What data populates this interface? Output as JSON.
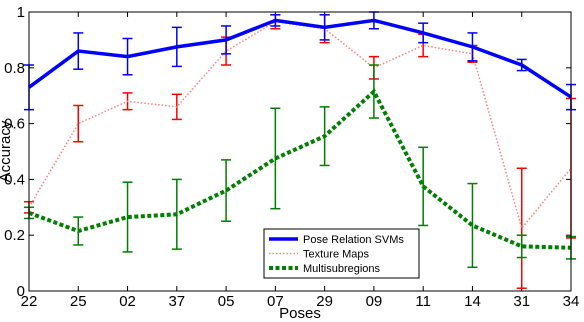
{
  "chart_data": {
    "type": "line",
    "xlabel": "Poses",
    "ylabel": "Accuracy",
    "categories": [
      "22",
      "25",
      "02",
      "37",
      "05",
      "07",
      "29",
      "09",
      "11",
      "14",
      "31",
      "34"
    ],
    "ylim": [
      0,
      1
    ],
    "yticks": [
      "0",
      "0.2",
      "0.4",
      "0.6",
      "0.8",
      "1"
    ],
    "grid": false,
    "legend_position": "bottom-center",
    "series": [
      {
        "name": "Pose Relation SVMs",
        "color": "#0000ff",
        "style": "solid",
        "values": [
          0.73,
          0.86,
          0.84,
          0.875,
          0.9,
          0.97,
          0.945,
          0.97,
          0.925,
          0.875,
          0.81,
          0.695
        ],
        "err": [
          0.08,
          0.065,
          0.065,
          0.07,
          0.05,
          0.02,
          0.045,
          0.03,
          0.035,
          0.05,
          0.02,
          0.045
        ]
      },
      {
        "name": "Texture Maps",
        "color": "#ff0000",
        "bar_color": "#ff0000",
        "line_color": "#ff8080",
        "style": "dotted",
        "values": [
          0.3,
          0.6,
          0.68,
          0.66,
          0.86,
          0.965,
          0.94,
          0.8,
          0.88,
          0.85,
          0.225,
          0.44
        ],
        "err": [
          0.02,
          0.065,
          0.03,
          0.045,
          0.05,
          0.025,
          0.05,
          0.04,
          0.04,
          0.03,
          0.215,
          0.25
        ]
      },
      {
        "name": "Multisubregions",
        "color": "#008000",
        "style": "dashed",
        "values": [
          0.28,
          0.215,
          0.265,
          0.275,
          0.36,
          0.475,
          0.555,
          0.715,
          0.375,
          0.235,
          0.16,
          0.155
        ],
        "err": [
          0.02,
          0.05,
          0.125,
          0.125,
          0.11,
          0.18,
          0.105,
          0.095,
          0.14,
          0.15,
          0.04,
          0.04
        ]
      }
    ]
  }
}
